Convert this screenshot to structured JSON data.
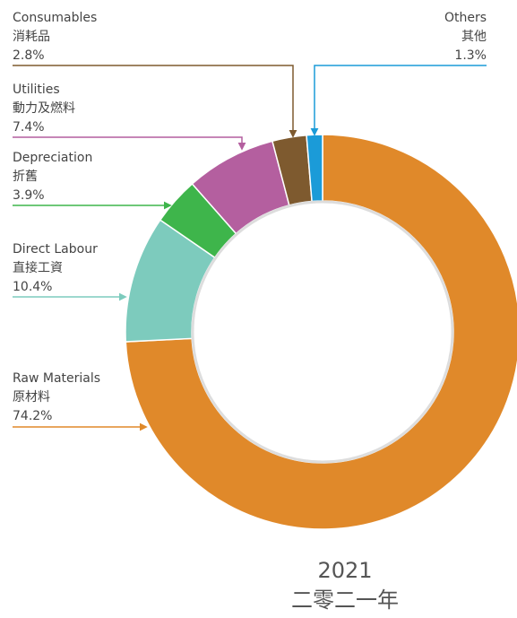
{
  "chart_data": {
    "type": "donut",
    "categories": [
      "Raw Materials",
      "Direct Labour",
      "Depreciation",
      "Utilities",
      "Consumables",
      "Others"
    ],
    "categories_zh": [
      "原材料",
      "直接工資",
      "折舊",
      "動力及燃料",
      "消耗品",
      "其他"
    ],
    "values": [
      74.2,
      10.4,
      3.9,
      7.4,
      2.8,
      1.3
    ],
    "value_labels": [
      "74.2%",
      "10.4%",
      "3.9%",
      "7.4%",
      "2.8%",
      "1.3%"
    ],
    "colors": [
      "#e0892a",
      "#7dcbbd",
      "#3eb54b",
      "#b45f9f",
      "#7e5a2f",
      "#1b9bd8"
    ],
    "caption": [
      "2021",
      "二零二一年"
    ]
  }
}
